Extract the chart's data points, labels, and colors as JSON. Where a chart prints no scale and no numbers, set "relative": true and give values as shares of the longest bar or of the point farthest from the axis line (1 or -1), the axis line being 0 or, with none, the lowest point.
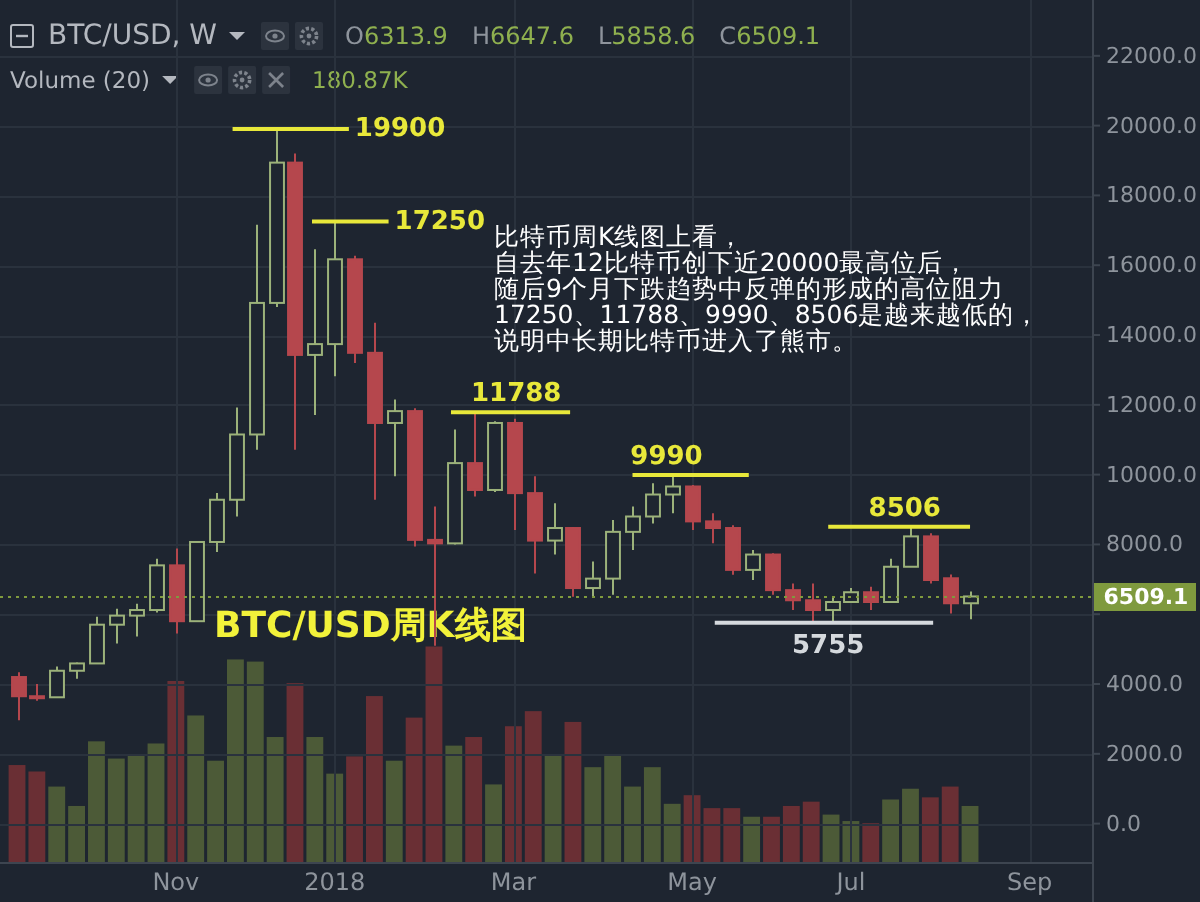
{
  "chart_data": [
    {
      "type": "candlestick",
      "title": "BTC/USD周K线图",
      "subtitle": "BTC/USD, W",
      "x": [
        "2017-09-11",
        "2017-09-18",
        "2017-09-25",
        "2017-10-02",
        "2017-10-09",
        "2017-10-16",
        "2017-10-23",
        "2017-10-30",
        "2017-11-06",
        "2017-11-13",
        "2017-11-20",
        "2017-11-27",
        "2017-12-04",
        "2017-12-11",
        "2017-12-18",
        "2017-12-25",
        "2018-01-01",
        "2018-01-08",
        "2018-01-15",
        "2018-01-22",
        "2018-01-29",
        "2018-02-05",
        "2018-02-12",
        "2018-02-19",
        "2018-02-26",
        "2018-03-05",
        "2018-03-12",
        "2018-03-19",
        "2018-03-26",
        "2018-04-02",
        "2018-04-09",
        "2018-04-16",
        "2018-04-23",
        "2018-04-30",
        "2018-05-07",
        "2018-05-14",
        "2018-05-21",
        "2018-05-28",
        "2018-06-04",
        "2018-06-11",
        "2018-06-18",
        "2018-06-25",
        "2018-07-02",
        "2018-07-09",
        "2018-07-16",
        "2018-07-23",
        "2018-07-30",
        "2018-08-06",
        "2018-08-13"
      ],
      "ohlc": [
        [
          4200,
          4340,
          2960,
          3650
        ],
        [
          3650,
          4000,
          3520,
          3620
        ],
        [
          3620,
          4500,
          3600,
          4380
        ],
        [
          4380,
          4620,
          4150,
          4590
        ],
        [
          4590,
          5930,
          4570,
          5700
        ],
        [
          5700,
          6160,
          5160,
          5960
        ],
        [
          5960,
          6300,
          5360,
          6120
        ],
        [
          6120,
          7590,
          6050,
          7400
        ],
        [
          7400,
          7880,
          5450,
          5800
        ],
        [
          5800,
          8100,
          5780,
          8070
        ],
        [
          8070,
          9470,
          7780,
          9280
        ],
        [
          9280,
          11920,
          8800,
          11150
        ],
        [
          11150,
          17160,
          10710,
          14920
        ],
        [
          14920,
          19900,
          14800,
          18940
        ],
        [
          18940,
          19200,
          10710,
          13430
        ],
        [
          13430,
          16460,
          11710,
          13740
        ],
        [
          13740,
          17250,
          12820,
          16170
        ],
        [
          16170,
          16270,
          13200,
          13490
        ],
        [
          13490,
          14350,
          9280,
          11480
        ],
        [
          11480,
          12150,
          9950,
          11820
        ],
        [
          11820,
          11900,
          7940,
          8130
        ],
        [
          8130,
          9090,
          5100,
          8030
        ],
        [
          8030,
          11290,
          8000,
          10330
        ],
        [
          10330,
          11788,
          9370,
          9560
        ],
        [
          9560,
          11530,
          9500,
          11480
        ],
        [
          11480,
          11600,
          8410,
          9470
        ],
        [
          9470,
          9950,
          7170,
          8110
        ],
        [
          8110,
          9180,
          7710,
          8470
        ],
        [
          8470,
          8500,
          6500,
          6750
        ],
        [
          6750,
          7510,
          6500,
          7020
        ],
        [
          7020,
          8700,
          6560,
          8360
        ],
        [
          8360,
          9090,
          7840,
          8800
        ],
        [
          8800,
          9750,
          8600,
          9430
        ],
        [
          9430,
          9990,
          8890,
          9660
        ],
        [
          9660,
          9700,
          8410,
          8660
        ],
        [
          8660,
          8890,
          8030,
          8470
        ],
        [
          8470,
          8550,
          7130,
          7270
        ],
        [
          7270,
          7840,
          6980,
          7710
        ],
        [
          7710,
          7750,
          6560,
          6690
        ],
        [
          6690,
          6880,
          6120,
          6400
        ],
        [
          6400,
          6880,
          5755,
          6120
        ],
        [
          6120,
          6500,
          5790,
          6350
        ],
        [
          6350,
          6750,
          6330,
          6630
        ],
        [
          6630,
          6790,
          6120,
          6350
        ],
        [
          6350,
          7590,
          6330,
          7360
        ],
        [
          7360,
          8506,
          7360,
          8230
        ],
        [
          8230,
          8320,
          6880,
          6980
        ],
        [
          7030,
          7140,
          6020,
          6314
        ],
        [
          6313.9,
          6647.6,
          5858.6,
          6509.1
        ]
      ],
      "colors": [
        "#b5474d",
        "#b5474d",
        "#9cb27a",
        "#9cb27a",
        "#9cb27a",
        "#9cb27a",
        "#9cb27a",
        "#9cb27a",
        "#b5474d",
        "#9cb27a",
        "#9cb27a",
        "#9cb27a",
        "#9cb27a",
        "#9cb27a",
        "#b5474d",
        "#9cb27a",
        "#9cb27a",
        "#b5474d",
        "#b5474d",
        "#9cb27a",
        "#b5474d",
        "#b5474d",
        "#9cb27a",
        "#b5474d",
        "#9cb27a",
        "#b5474d",
        "#b5474d",
        "#9cb27a",
        "#b5474d",
        "#9cb27a",
        "#9cb27a",
        "#9cb27a",
        "#9cb27a",
        "#9cb27a",
        "#b5474d",
        "#b5474d",
        "#b5474d",
        "#9cb27a",
        "#b5474d",
        "#b5474d",
        "#b5474d",
        "#9cb27a",
        "#9cb27a",
        "#b5474d",
        "#9cb27a",
        "#9cb27a",
        "#b5474d",
        "#b5474d",
        "#9cb27a"
      ],
      "series": [
        {
          "type": "line",
          "x": [
            "2017-11-26",
            "2018-01-06"
          ],
          "values": [
            19900,
            19900
          ],
          "color": "#e8e83a"
        },
        {
          "type": "line",
          "x": [
            "2017-12-24",
            "2018-01-20"
          ],
          "values": [
            17250,
            17250
          ],
          "color": "#e8e83a"
        },
        {
          "type": "line",
          "x": [
            "2018-02-11",
            "2018-03-25"
          ],
          "values": [
            11788,
            11788
          ],
          "color": "#e8e83a"
        },
        {
          "type": "line",
          "x": [
            "2018-04-16",
            "2018-05-27"
          ],
          "values": [
            9990,
            9990
          ],
          "color": "#e8e83a"
        },
        {
          "type": "line",
          "x": [
            "2018-06-24",
            "2018-08-13"
          ],
          "values": [
            8506,
            8506
          ],
          "color": "#e8e83a"
        },
        {
          "type": "line",
          "x": [
            "2018-05-15",
            "2018-07-31"
          ],
          "values": [
            5755,
            5755
          ],
          "color": "#d5d9dd"
        }
      ],
      "xlim": [
        "2017-09-05",
        "2018-09-25"
      ],
      "xticks": [
        {
          "value": "2017-11-06",
          "label": "Nov"
        },
        {
          "value": "2018-01-01",
          "label": "2018"
        },
        {
          "value": "2018-03-05",
          "label": "Mar"
        },
        {
          "value": "2018-05-07",
          "label": "May"
        },
        {
          "value": "2018-07-02",
          "label": "Jul"
        },
        {
          "value": "2018-09-03",
          "label": "Sep"
        }
      ],
      "ylim": [
        -1100,
        23600
      ],
      "yticks": [
        {
          "value": 0,
          "label": "0.0"
        },
        {
          "value": 2000,
          "label": "2000.0"
        },
        {
          "value": 4000,
          "label": "4000.0"
        },
        {
          "value": 6000,
          "label": null
        },
        {
          "value": 8000,
          "label": "8000.0"
        },
        {
          "value": 10000,
          "label": "10000.0"
        },
        {
          "value": 12000,
          "label": "12000.0"
        },
        {
          "value": 14000,
          "label": "14000.0"
        },
        {
          "value": 16000,
          "label": "16000.0"
        },
        {
          "value": 18000,
          "label": "18000.0"
        },
        {
          "value": 20000,
          "label": "20000.0"
        },
        {
          "value": 22000,
          "label": "22000.0"
        }
      ],
      "grid": true,
      "ref_lines": [
        {
          "axis": "y",
          "value": 6509.1,
          "label": "6509.1",
          "color": "#7f9a3e",
          "line_style": "dotted"
        }
      ],
      "annotations": [
        "O6313.9",
        "H6647.6",
        "L5858.6",
        "C6509.1",
        "比特币周K线图上看，",
        "自去年12比特币创下近20000最高位后，",
        "随后9个月下跌趋势中反弹的形成的高位阻力",
        "17250、11788、9990、8506是越来越低的，",
        "说明中长期比特币进入了熊市。",
        {
          "text": "19900",
          "x": "2018-01-06",
          "y": 19900
        },
        {
          "text": "17250",
          "x": "2018-01-20",
          "y": 17250
        },
        {
          "text": "11788",
          "x": "2018-03-06",
          "y": 11788
        },
        {
          "text": "9990",
          "x": "2018-04-28",
          "y": 9990
        },
        {
          "text": "8506",
          "x": "2018-07-21",
          "y": 8506
        },
        {
          "text": "5755",
          "x": "2018-06-24",
          "y": 5755
        }
      ]
    },
    {
      "type": "bar",
      "title": "Volume (20)",
      "relative": true,
      "x": [
        "2017-09-11",
        "2017-09-18",
        "2017-09-25",
        "2017-10-02",
        "2017-10-09",
        "2017-10-16",
        "2017-10-23",
        "2017-10-30",
        "2017-11-06",
        "2017-11-13",
        "2017-11-20",
        "2017-11-27",
        "2017-12-04",
        "2017-12-11",
        "2017-12-18",
        "2017-12-25",
        "2018-01-01",
        "2018-01-08",
        "2018-01-15",
        "2018-01-22",
        "2018-01-29",
        "2018-02-05",
        "2018-02-12",
        "2018-02-19",
        "2018-02-26",
        "2018-03-05",
        "2018-03-12",
        "2018-03-19",
        "2018-03-26",
        "2018-04-02",
        "2018-04-09",
        "2018-04-16",
        "2018-04-23",
        "2018-04-30",
        "2018-05-07",
        "2018-05-14",
        "2018-05-21",
        "2018-05-28",
        "2018-06-04",
        "2018-06-11",
        "2018-06-18",
        "2018-06-25",
        "2018-07-02",
        "2018-07-09",
        "2018-07-16",
        "2018-07-23",
        "2018-07-30",
        "2018-08-06",
        "2018-08-13"
      ],
      "values": [
        0.45,
        0.42,
        0.35,
        0.26,
        0.56,
        0.48,
        0.5,
        0.55,
        0.84,
        0.68,
        0.47,
        0.94,
        0.93,
        0.58,
        0.83,
        0.58,
        0.41,
        0.49,
        0.77,
        0.47,
        0.67,
        1,
        0.54,
        0.58,
        0.36,
        0.63,
        0.7,
        0.5,
        0.65,
        0.44,
        0.5,
        0.35,
        0.44,
        0.27,
        0.31,
        0.25,
        0.25,
        0.21,
        0.21,
        0.26,
        0.28,
        0.22,
        0.19,
        0.18,
        0.29,
        0.34,
        0.3,
        0.35,
        0.26
      ],
      "colors": [
        "#6a2f34",
        "#6a2f34",
        "#4c5a37",
        "#4c5a37",
        "#4c5a37",
        "#4c5a37",
        "#4c5a37",
        "#4c5a37",
        "#6a2f34",
        "#4c5a37",
        "#4c5a37",
        "#4c5a37",
        "#4c5a37",
        "#4c5a37",
        "#6a2f34",
        "#4c5a37",
        "#4c5a37",
        "#6a2f34",
        "#6a2f34",
        "#4c5a37",
        "#6a2f34",
        "#6a2f34",
        "#4c5a37",
        "#6a2f34",
        "#4c5a37",
        "#6a2f34",
        "#6a2f34",
        "#4c5a37",
        "#6a2f34",
        "#4c5a37",
        "#4c5a37",
        "#4c5a37",
        "#4c5a37",
        "#4c5a37",
        "#6a2f34",
        "#6a2f34",
        "#6a2f34",
        "#4c5a37",
        "#6a2f34",
        "#6a2f34",
        "#6a2f34",
        "#4c5a37",
        "#4c5a37",
        "#6a2f34",
        "#4c5a37",
        "#4c5a37",
        "#6a2f34",
        "#6a2f34",
        "#4c5a37"
      ],
      "xlim": [
        "2017-09-05",
        "2018-09-25"
      ],
      "annotations": [
        "180.87K"
      ]
    }
  ]
}
